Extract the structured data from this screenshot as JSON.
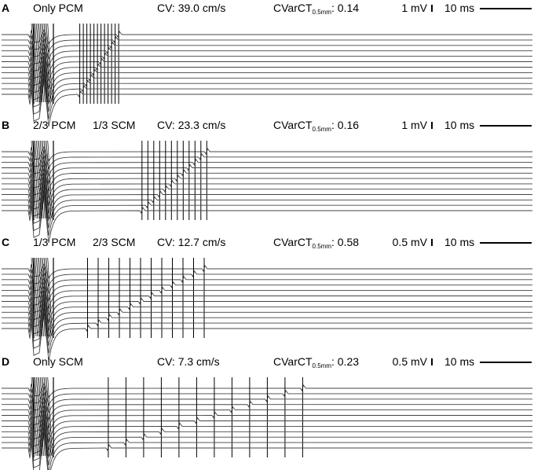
{
  "panels": [
    {
      "letter": "A",
      "condition_1": "Only PCM",
      "condition_2": "",
      "cv": "CV: 39.0 cm/s",
      "cvar_main": "CVarCT",
      "cvar_sub": "0.5mm",
      "cvar_value": ": 0.14",
      "voltage_scale": "1 mV",
      "time_scale": "10 ms",
      "cv_cm_s": 39.0,
      "traces": 12,
      "activation_ms": {
        "first": 6.0,
        "last": 13.5
      },
      "spike_count": 12
    },
    {
      "letter": "B",
      "condition_1": "2/3 PCM",
      "condition_2": "1/3 SCM",
      "cv": "CV: 23.3 cm/s",
      "cvar_main": "CVarCT",
      "cvar_sub": "0.5mm",
      "cvar_value": ": 0.16",
      "voltage_scale": "1 mV",
      "time_scale": "10 ms",
      "cv_cm_s": 23.3,
      "traces": 12,
      "activation_ms": {
        "first": 18.0,
        "last": 30.5
      },
      "spike_count": 12
    },
    {
      "letter": "C",
      "condition_1": "1/3 PCM",
      "condition_2": "2/3 SCM",
      "cv": "CV: 12.7 cm/s",
      "cvar_main": "CVarCT",
      "cvar_sub": "0.5mm",
      "cvar_value": ": 0.58",
      "voltage_scale": "0.5 mV",
      "time_scale": "10 ms",
      "cv_cm_s": 12.7,
      "traces": 12,
      "activation_ms": {
        "first": 7.5,
        "last": 30.0
      },
      "spike_count": 12
    },
    {
      "letter": "D",
      "condition_1": "Only SCM",
      "condition_2": "",
      "cv": "CV:   7.3 cm/s",
      "cvar_main": "CVarCT",
      "cvar_sub": "0.5mm",
      "cvar_value": ": 0.23",
      "voltage_scale": "0.5 mV",
      "time_scale": "10 ms",
      "cv_cm_s": 7.3,
      "traces": 12,
      "activation_ms": {
        "first": 11.5,
        "last": 49.0
      },
      "spike_count": 12
    }
  ]
}
